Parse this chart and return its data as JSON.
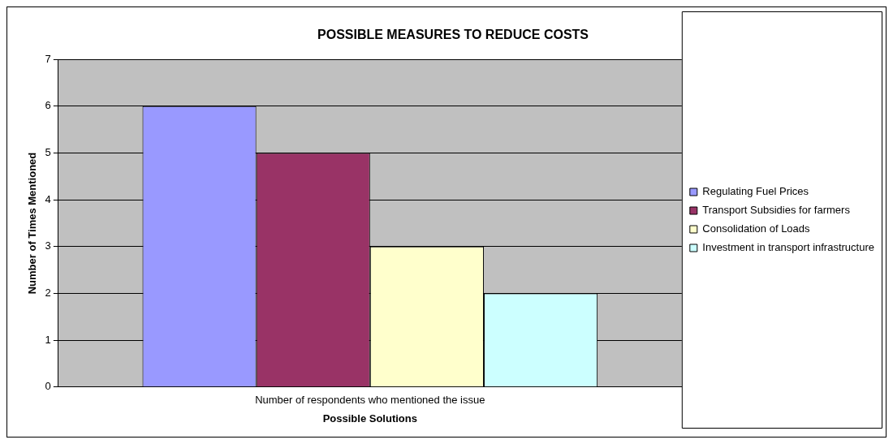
{
  "chart_data": {
    "type": "bar",
    "title": "POSSIBLE MEASURES TO REDUCE COSTS",
    "xlabel": "Possible Solutions",
    "ylabel": "Number of Times Mentioned",
    "categories": [
      "Number of respondents who mentioned the issue"
    ],
    "series": [
      {
        "name": "Regulating Fuel Prices",
        "color": "#9999ff",
        "values": [
          6
        ]
      },
      {
        "name": "Transport Subsidies for farmers",
        "color": "#993366",
        "values": [
          5
        ]
      },
      {
        "name": "Consolidation of Loads",
        "color": "#ffffcc",
        "values": [
          3
        ]
      },
      {
        "name": "Investment in transport infrastructure",
        "color": "#ccffff",
        "values": [
          2
        ]
      }
    ],
    "ylim": [
      0,
      7
    ],
    "yticks": [
      0,
      1,
      2,
      3,
      4,
      5,
      6,
      7
    ],
    "grid": "y",
    "legend": "right"
  }
}
